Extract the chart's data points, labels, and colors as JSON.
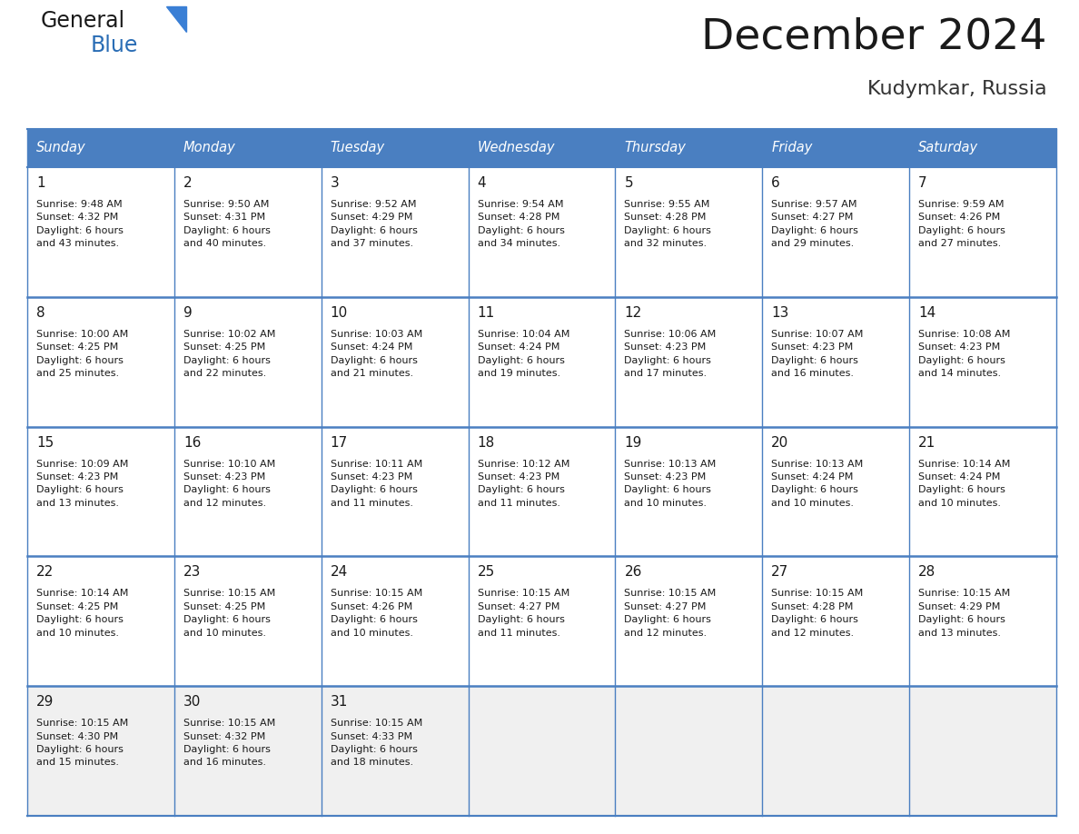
{
  "title": "December 2024",
  "subtitle": "Kudymkar, Russia",
  "header_bg": "#4a7fc1",
  "header_text_color": "#FFFFFF",
  "border_color": "#4a7fc1",
  "border_color_row": "#4a7fc1",
  "day_names": [
    "Sunday",
    "Monday",
    "Tuesday",
    "Wednesday",
    "Thursday",
    "Friday",
    "Saturday"
  ],
  "title_color": "#1a1a1a",
  "subtitle_color": "#333333",
  "general_color": "#1a1a1a",
  "blue_color": "#2a6db5",
  "triangle_color": "#3a7fd5",
  "cell_bg": "#FFFFFF",
  "last_row_bg": "#f0f0f0",
  "calendar_data": [
    [
      {
        "day": "1",
        "info": "Sunrise: 9:48 AM\nSunset: 4:32 PM\nDaylight: 6 hours\nand 43 minutes."
      },
      {
        "day": "2",
        "info": "Sunrise: 9:50 AM\nSunset: 4:31 PM\nDaylight: 6 hours\nand 40 minutes."
      },
      {
        "day": "3",
        "info": "Sunrise: 9:52 AM\nSunset: 4:29 PM\nDaylight: 6 hours\nand 37 minutes."
      },
      {
        "day": "4",
        "info": "Sunrise: 9:54 AM\nSunset: 4:28 PM\nDaylight: 6 hours\nand 34 minutes."
      },
      {
        "day": "5",
        "info": "Sunrise: 9:55 AM\nSunset: 4:28 PM\nDaylight: 6 hours\nand 32 minutes."
      },
      {
        "day": "6",
        "info": "Sunrise: 9:57 AM\nSunset: 4:27 PM\nDaylight: 6 hours\nand 29 minutes."
      },
      {
        "day": "7",
        "info": "Sunrise: 9:59 AM\nSunset: 4:26 PM\nDaylight: 6 hours\nand 27 minutes."
      }
    ],
    [
      {
        "day": "8",
        "info": "Sunrise: 10:00 AM\nSunset: 4:25 PM\nDaylight: 6 hours\nand 25 minutes."
      },
      {
        "day": "9",
        "info": "Sunrise: 10:02 AM\nSunset: 4:25 PM\nDaylight: 6 hours\nand 22 minutes."
      },
      {
        "day": "10",
        "info": "Sunrise: 10:03 AM\nSunset: 4:24 PM\nDaylight: 6 hours\nand 21 minutes."
      },
      {
        "day": "11",
        "info": "Sunrise: 10:04 AM\nSunset: 4:24 PM\nDaylight: 6 hours\nand 19 minutes."
      },
      {
        "day": "12",
        "info": "Sunrise: 10:06 AM\nSunset: 4:23 PM\nDaylight: 6 hours\nand 17 minutes."
      },
      {
        "day": "13",
        "info": "Sunrise: 10:07 AM\nSunset: 4:23 PM\nDaylight: 6 hours\nand 16 minutes."
      },
      {
        "day": "14",
        "info": "Sunrise: 10:08 AM\nSunset: 4:23 PM\nDaylight: 6 hours\nand 14 minutes."
      }
    ],
    [
      {
        "day": "15",
        "info": "Sunrise: 10:09 AM\nSunset: 4:23 PM\nDaylight: 6 hours\nand 13 minutes."
      },
      {
        "day": "16",
        "info": "Sunrise: 10:10 AM\nSunset: 4:23 PM\nDaylight: 6 hours\nand 12 minutes."
      },
      {
        "day": "17",
        "info": "Sunrise: 10:11 AM\nSunset: 4:23 PM\nDaylight: 6 hours\nand 11 minutes."
      },
      {
        "day": "18",
        "info": "Sunrise: 10:12 AM\nSunset: 4:23 PM\nDaylight: 6 hours\nand 11 minutes."
      },
      {
        "day": "19",
        "info": "Sunrise: 10:13 AM\nSunset: 4:23 PM\nDaylight: 6 hours\nand 10 minutes."
      },
      {
        "day": "20",
        "info": "Sunrise: 10:13 AM\nSunset: 4:24 PM\nDaylight: 6 hours\nand 10 minutes."
      },
      {
        "day": "21",
        "info": "Sunrise: 10:14 AM\nSunset: 4:24 PM\nDaylight: 6 hours\nand 10 minutes."
      }
    ],
    [
      {
        "day": "22",
        "info": "Sunrise: 10:14 AM\nSunset: 4:25 PM\nDaylight: 6 hours\nand 10 minutes."
      },
      {
        "day": "23",
        "info": "Sunrise: 10:15 AM\nSunset: 4:25 PM\nDaylight: 6 hours\nand 10 minutes."
      },
      {
        "day": "24",
        "info": "Sunrise: 10:15 AM\nSunset: 4:26 PM\nDaylight: 6 hours\nand 10 minutes."
      },
      {
        "day": "25",
        "info": "Sunrise: 10:15 AM\nSunset: 4:27 PM\nDaylight: 6 hours\nand 11 minutes."
      },
      {
        "day": "26",
        "info": "Sunrise: 10:15 AM\nSunset: 4:27 PM\nDaylight: 6 hours\nand 12 minutes."
      },
      {
        "day": "27",
        "info": "Sunrise: 10:15 AM\nSunset: 4:28 PM\nDaylight: 6 hours\nand 12 minutes."
      },
      {
        "day": "28",
        "info": "Sunrise: 10:15 AM\nSunset: 4:29 PM\nDaylight: 6 hours\nand 13 minutes."
      }
    ],
    [
      {
        "day": "29",
        "info": "Sunrise: 10:15 AM\nSunset: 4:30 PM\nDaylight: 6 hours\nand 15 minutes."
      },
      {
        "day": "30",
        "info": "Sunrise: 10:15 AM\nSunset: 4:32 PM\nDaylight: 6 hours\nand 16 minutes."
      },
      {
        "day": "31",
        "info": "Sunrise: 10:15 AM\nSunset: 4:33 PM\nDaylight: 6 hours\nand 18 minutes."
      },
      null,
      null,
      null,
      null
    ]
  ],
  "figsize": [
    11.88,
    9.18
  ],
  "dpi": 100
}
